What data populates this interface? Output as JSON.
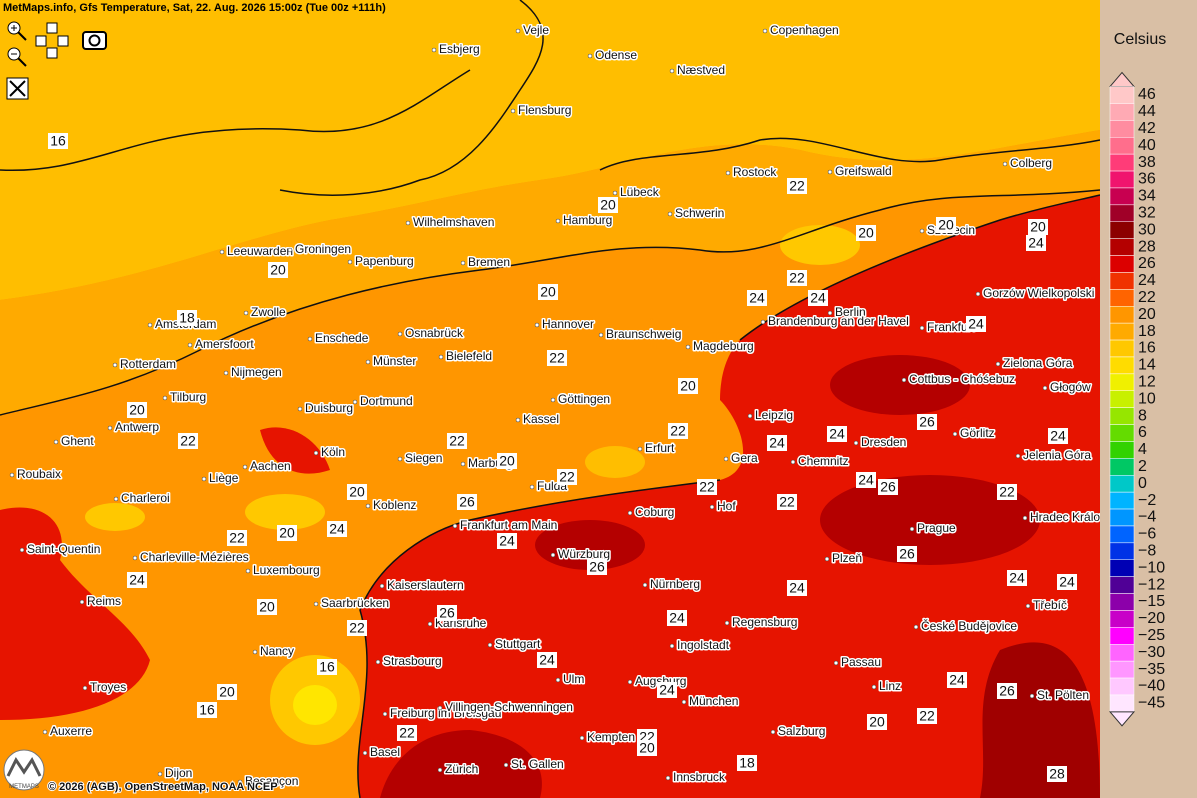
{
  "header": {
    "title": "MetMaps.info, Gfs Temperature, Sat, 22. Aug. 2026 15:00z (Tue 00z +111h)"
  },
  "legend": {
    "title": "Celsius",
    "labels": [
      "46",
      "44",
      "42",
      "40",
      "38",
      "36",
      "34",
      "32",
      "30",
      "28",
      "26",
      "24",
      "22",
      "20",
      "18",
      "16",
      "14",
      "12",
      "10",
      "8",
      "6",
      "4",
      "2",
      "0",
      "−2",
      "−4",
      "−6",
      "−8",
      "−10",
      "−12",
      "−15",
      "−20",
      "−25",
      "−30",
      "−35",
      "−40",
      "−45"
    ],
    "colors": [
      "#ffc8c8",
      "#ffaab4",
      "#ff8ca0",
      "#ff6e8c",
      "#ff3c78",
      "#f0146e",
      "#c80050",
      "#a00028",
      "#8c0000",
      "#b40000",
      "#dc0000",
      "#f03200",
      "#ff6400",
      "#ff9600",
      "#ffaa00",
      "#ffc800",
      "#ffdc00",
      "#f0f000",
      "#c8f000",
      "#96e600",
      "#64dc00",
      "#32d200",
      "#00c864",
      "#00c8c8",
      "#00b4ff",
      "#0096ff",
      "#0064ff",
      "#0032e6",
      "#0000b4",
      "#500096",
      "#8c00aa",
      "#c800c8",
      "#ff00ff",
      "#ff64ff",
      "#ff96ff",
      "#ffc8ff",
      "#ffe6ff"
    ]
  },
  "cities": [
    "Vejle",
    "Copenhagen",
    "Esbjerg",
    "Odense",
    "Næstved",
    "Flensburg",
    "Rostock",
    "Greifswald",
    "Colberg",
    "Lübeck",
    "Hamburg",
    "Schwerin",
    "Wilhelmshaven",
    "Szczecin",
    "Leeuwarden",
    "Groningen",
    "Papenburg",
    "Bremen",
    "Gorzów Wielkopolski",
    "Berlin",
    "Brandenburg an der Havel",
    "Frankfurt",
    "Amsterdam",
    "Zwolle",
    "Hannover",
    "Braunschweig",
    "Enschede",
    "Osnabrück",
    "Amersfoort",
    "Magdeburg",
    "Bielefeld",
    "Münster",
    "Rotterdam",
    "Zielona Góra",
    "Nijmegen",
    "Cottbus - Chóśebuz",
    "Głogów",
    "Tilburg",
    "Dortmund",
    "Duisburg",
    "Göttingen",
    "Antwerp",
    "Kassel",
    "Leipzig",
    "Görlitz",
    "Dresden",
    "Ghent",
    "Aachen",
    "Köln",
    "Siegen",
    "Marburg",
    "Erfurt",
    "Gera",
    "Chemnitz",
    "Jelenia Góra",
    "Roubaix",
    "Liège",
    "Fulda",
    "Charleroi",
    "Koblenz",
    "Coburg",
    "Hof",
    "Hradec Králové",
    "Frankfurt am Main",
    "Prague",
    "Saint-Quentin",
    "Charleville-Mézières",
    "Würzburg",
    "Plzeň",
    "Luxembourg",
    "Kaiserslautern",
    "Nürnberg",
    "Reims",
    "Saarbrücken",
    "Třebíč",
    "Karlsruhe",
    "Regensburg",
    "České Budějovice",
    "Stuttgart",
    "Ingolstadt",
    "Nancy",
    "Strasbourg",
    "Passau",
    "Ulm",
    "Augsburg",
    "Troyes",
    "Linz",
    "St. Pölten",
    "München",
    "Freiburg im Breisgau",
    "Villingen-Schwenningen",
    "Salzburg",
    "Auxerre",
    "Kempten",
    "Basel",
    "Zürich",
    "St. Gallen",
    "Innsbruck",
    "Dijon",
    "Besançon"
  ],
  "contour_labels": [
    16,
    22,
    20,
    20,
    20,
    20,
    24,
    20,
    20,
    22,
    24,
    24,
    24,
    18,
    22,
    20,
    20,
    22,
    22,
    22,
    24,
    24,
    26,
    24,
    20,
    22,
    22,
    22,
    24,
    26,
    22,
    20,
    26,
    22,
    20,
    24,
    24,
    26,
    26,
    24,
    20,
    22,
    26,
    24,
    24,
    24,
    24,
    24,
    16,
    20,
    16,
    24,
    24,
    26,
    20,
    22,
    22,
    22,
    20,
    18,
    28
  ],
  "footer": {
    "copyright": "© 2026 (AGB), OpenStreetMap, NOAA NCEP",
    "logo": "METMAPS"
  }
}
